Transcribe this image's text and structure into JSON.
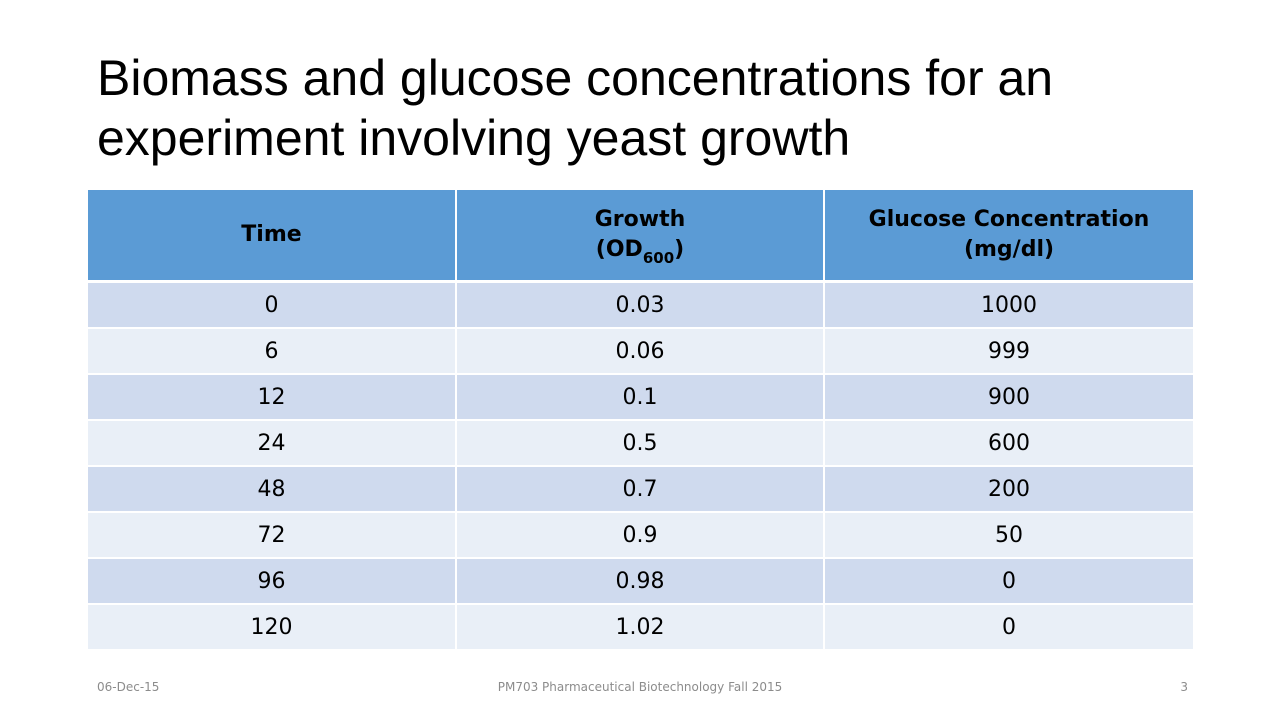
{
  "slide": {
    "title": "Biomass and glucose concentrations for an experiment involving yeast growth"
  },
  "table": {
    "headers": {
      "time": "Time",
      "growth_line1": "Growth",
      "growth_open": "(OD",
      "growth_sub": "600",
      "growth_close": ")",
      "glucose_line1": "Glucose Concentration",
      "glucose_line2": "(mg/dl)"
    },
    "rows": [
      [
        "0",
        "0.03",
        "1000"
      ],
      [
        "6",
        "0.06",
        "999"
      ],
      [
        "12",
        "0.1",
        "900"
      ],
      [
        "24",
        "0.5",
        "600"
      ],
      [
        "48",
        "0.7",
        "200"
      ],
      [
        "72",
        "0.9",
        "50"
      ],
      [
        "96",
        "0.98",
        "0"
      ],
      [
        "120",
        "1.02",
        "0"
      ]
    ]
  },
  "footer": {
    "date": "06-Dec-15",
    "course": "PM703 Pharmaceutical Biotechnology Fall 2015",
    "page": "3"
  },
  "colors": {
    "header_fill": "#5b9bd5",
    "row_odd": "#cfdaee",
    "row_even": "#e9eff7",
    "footer_text": "#8c8c8c"
  }
}
